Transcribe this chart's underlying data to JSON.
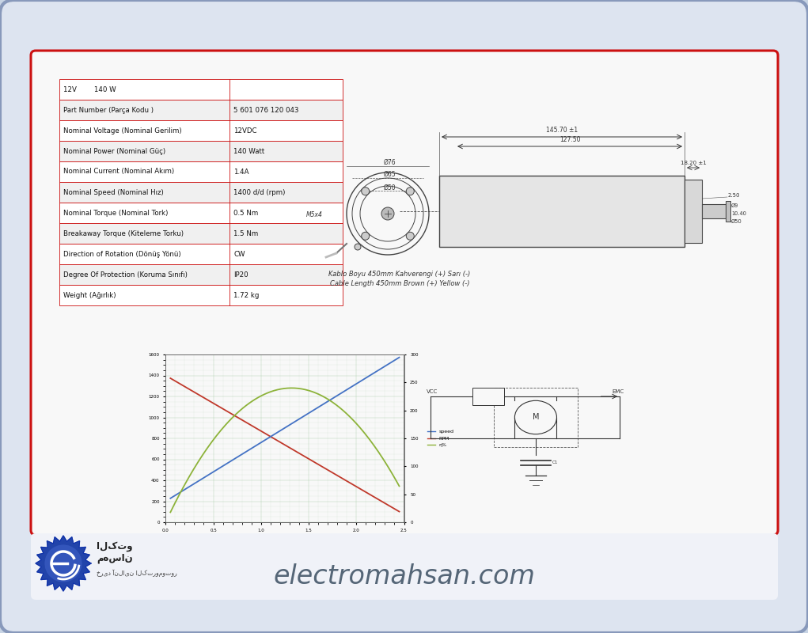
{
  "background_color": "#c8d4e4",
  "inner_bg": "#f5f5f5",
  "red_border_color": "#cc1111",
  "bottom_bg": "#ffffff",
  "table_rows": [
    [
      "12V        140 W",
      ""
    ],
    [
      "Part Number (Parça Kodu )",
      "5 601 076 120 043"
    ],
    [
      "Nominal Voltage (Nominal Gerilim)",
      "12VDC"
    ],
    [
      "Nominal Power (Nominal Güç)",
      "140 Watt"
    ],
    [
      "Nominal Current (Nominal Akım)",
      "1.4A"
    ],
    [
      "Nominal Speed (Nominal Hız)",
      "1400 d/d (rpm)"
    ],
    [
      "Nominal Torque (Nominal Tork)",
      "0.5 Nm"
    ],
    [
      "Breakaway Torque (Kiteleme Torku)",
      "1.5 Nm"
    ],
    [
      "Direction of Rotation (Dönüş Yönü)",
      "CW"
    ],
    [
      "Degree Of Protection (Koruma Sınıfı)",
      "IP20"
    ],
    [
      "Weight (Ağırlık)",
      "1.72 kg"
    ]
  ],
  "cable_text_line1": "Kablo Boyu 450mm Kahverengi (+) Sarı (-)",
  "cable_text_line2": "Cable Length 450mm Brown (+) Yellow (-)",
  "brand_text": "electromahsan.com",
  "chart_colors": [
    "#4472c4",
    "#c0392b",
    "#8db33a"
  ],
  "chart_legend": [
    "speed",
    "RPM",
    "η%"
  ]
}
